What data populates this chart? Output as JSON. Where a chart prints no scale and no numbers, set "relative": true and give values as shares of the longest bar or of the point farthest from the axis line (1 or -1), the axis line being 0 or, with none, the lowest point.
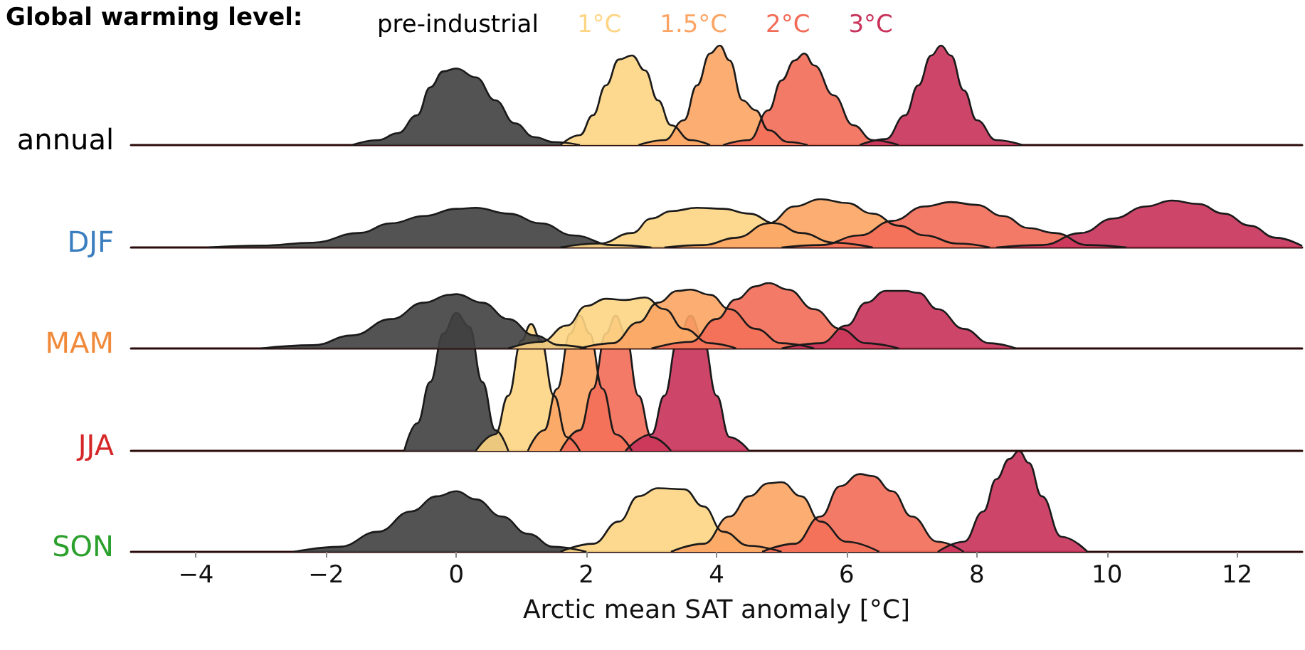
{
  "chart_data": [
    {
      "type": "area",
      "relative": true,
      "legend_title": "Global warming level:",
      "legend": "top",
      "ylabel": "annual",
      "xlim": [
        -5,
        13
      ],
      "tick_labels": false,
      "series": [
        {
          "name": "pre-industrial",
          "color": "#404040",
          "x": [
            -1.6,
            -1.2,
            -0.9,
            -0.6,
            -0.4,
            -0.2,
            0,
            0.3,
            0.6,
            0.9,
            1.2,
            1.5,
            1.9
          ],
          "values": [
            0,
            0.05,
            0.12,
            0.3,
            0.58,
            0.74,
            0.77,
            0.68,
            0.45,
            0.22,
            0.08,
            0.03,
            0
          ]
        },
        {
          "name": "1°C",
          "color": "#fdd584",
          "x": [
            1.6,
            1.9,
            2.1,
            2.3,
            2.5,
            2.7,
            2.9,
            3.1,
            3.3,
            3.6,
            3.9
          ],
          "values": [
            0,
            0.1,
            0.3,
            0.6,
            0.86,
            0.9,
            0.75,
            0.45,
            0.2,
            0.05,
            0
          ]
        },
        {
          "name": "1.5°C",
          "color": "#fca463",
          "x": [
            2.8,
            3.2,
            3.5,
            3.7,
            3.9,
            4.05,
            4.2,
            4.4,
            4.6,
            4.8,
            5.1,
            5.4
          ],
          "values": [
            0,
            0.05,
            0.25,
            0.6,
            0.92,
            1,
            0.85,
            0.45,
            0.35,
            0.15,
            0.03,
            0
          ]
        },
        {
          "name": "2°C",
          "color": "#f26b56",
          "x": [
            4.1,
            4.5,
            4.8,
            5.0,
            5.2,
            5.35,
            5.5,
            5.8,
            6.1,
            6.4,
            6.8
          ],
          "values": [
            0,
            0.05,
            0.35,
            0.65,
            0.85,
            0.92,
            0.8,
            0.5,
            0.2,
            0.05,
            0
          ]
        },
        {
          "name": "3°C",
          "color": "#c8325a",
          "x": [
            6.2,
            6.6,
            6.9,
            7.1,
            7.3,
            7.45,
            7.6,
            7.8,
            8.0,
            8.3,
            8.7
          ],
          "values": [
            0,
            0.06,
            0.3,
            0.6,
            0.9,
            1.0,
            0.9,
            0.55,
            0.25,
            0.05,
            0
          ]
        }
      ]
    },
    {
      "type": "area",
      "relative": true,
      "ylabel": "DJF",
      "xlim": [
        -5,
        13
      ],
      "tick_labels": false,
      "series": [
        {
          "color": "#404040",
          "x": [
            -3.8,
            -3,
            -2.2,
            -1.5,
            -1,
            -0.5,
            0,
            0.3,
            0.8,
            1.3,
            1.8,
            2.4,
            3.0
          ],
          "values": [
            0,
            0.04,
            0.1,
            0.3,
            0.5,
            0.65,
            0.8,
            0.82,
            0.7,
            0.5,
            0.25,
            0.05,
            0
          ]
        },
        {
          "color": "#fdd584",
          "x": [
            1.6,
            2.2,
            2.7,
            3.0,
            3.3,
            3.7,
            4.1,
            4.5,
            4.9,
            5.3,
            5.8,
            6.4
          ],
          "values": [
            0,
            0.08,
            0.3,
            0.6,
            0.75,
            0.82,
            0.8,
            0.7,
            0.5,
            0.3,
            0.1,
            0
          ]
        },
        {
          "color": "#fca463",
          "x": [
            3.2,
            3.8,
            4.3,
            4.8,
            5.2,
            5.6,
            6.0,
            6.4,
            6.8,
            7.2,
            7.7,
            8.2
          ],
          "values": [
            0,
            0.05,
            0.2,
            0.5,
            0.85,
            1,
            0.92,
            0.7,
            0.45,
            0.25,
            0.08,
            0
          ]
        },
        {
          "color": "#f26b56",
          "x": [
            5.0,
            5.6,
            6.2,
            6.7,
            7.2,
            7.6,
            8.0,
            8.4,
            8.8,
            9.2,
            9.7,
            10.3
          ],
          "values": [
            0,
            0.05,
            0.25,
            0.55,
            0.85,
            0.94,
            0.88,
            0.65,
            0.4,
            0.3,
            0.05,
            0
          ]
        },
        {
          "color": "#c8325a",
          "x": [
            8.3,
            9.0,
            9.6,
            10.1,
            10.6,
            11.0,
            11.4,
            11.8,
            12.2,
            12.6,
            13.0
          ],
          "values": [
            0,
            0.05,
            0.3,
            0.6,
            0.85,
            0.97,
            0.9,
            0.7,
            0.45,
            0.2,
            0.03
          ]
        }
      ]
    },
    {
      "type": "area",
      "relative": true,
      "ylabel": "MAM",
      "xlim": [
        -5,
        13
      ],
      "tick_labels": false,
      "series": [
        {
          "color": "#404040",
          "x": [
            -3.0,
            -2.2,
            -1.6,
            -1.0,
            -0.5,
            -0.1,
            0,
            0.4,
            0.8,
            1.2,
            1.6,
            2.0
          ],
          "values": [
            0,
            0.05,
            0.2,
            0.45,
            0.7,
            0.82,
            0.83,
            0.7,
            0.45,
            0.2,
            0.05,
            0
          ]
        },
        {
          "color": "#fdd584",
          "x": [
            0.8,
            1.3,
            1.7,
            2.0,
            2.3,
            2.6,
            2.9,
            3.2,
            3.5,
            3.9,
            4.3
          ],
          "values": [
            0,
            0.1,
            0.35,
            0.65,
            0.76,
            0.74,
            0.78,
            0.6,
            0.3,
            0.08,
            0
          ]
        },
        {
          "color": "#fca463",
          "x": [
            1.9,
            2.4,
            2.8,
            3.1,
            3.4,
            3.6,
            3.9,
            4.2,
            4.6,
            5.0,
            5.5
          ],
          "values": [
            0,
            0.08,
            0.4,
            0.7,
            0.88,
            0.9,
            0.82,
            0.6,
            0.3,
            0.08,
            0
          ]
        },
        {
          "color": "#f26b56",
          "x": [
            3.0,
            3.6,
            4.0,
            4.3,
            4.6,
            4.8,
            5.1,
            5.5,
            5.9,
            6.3,
            6.8
          ],
          "values": [
            0,
            0.1,
            0.45,
            0.75,
            0.95,
            1,
            0.9,
            0.6,
            0.3,
            0.08,
            0
          ]
        },
        {
          "color": "#c8325a",
          "x": [
            5.0,
            5.6,
            6.0,
            6.3,
            6.6,
            6.9,
            7.1,
            7.4,
            7.8,
            8.2,
            8.6
          ],
          "values": [
            0,
            0.08,
            0.35,
            0.7,
            0.88,
            0.88,
            0.85,
            0.6,
            0.3,
            0.08,
            0
          ]
        }
      ]
    },
    {
      "type": "area",
      "relative": true,
      "ylabel": "JJA",
      "xlim": [
        -5,
        13
      ],
      "tick_labels": false,
      "series": [
        {
          "color": "#404040",
          "x": [
            -0.8,
            -0.6,
            -0.4,
            -0.2,
            0,
            0.2,
            0.4,
            0.6,
            0.8
          ],
          "values": [
            0,
            0.2,
            0.5,
            0.85,
            1,
            0.9,
            0.5,
            0.15,
            0
          ]
        },
        {
          "color": "#fdd584",
          "x": [
            0.3,
            0.6,
            0.8,
            1.0,
            1.15,
            1.3,
            1.5,
            1.7,
            1.9
          ],
          "values": [
            0,
            0.12,
            0.4,
            0.8,
            0.92,
            0.8,
            0.4,
            0.1,
            0
          ]
        },
        {
          "color": "#fca463",
          "x": [
            1.1,
            1.35,
            1.55,
            1.75,
            1.9,
            2.05,
            2.25,
            2.45,
            2.7
          ],
          "values": [
            0,
            0.15,
            0.45,
            0.85,
            0.98,
            0.85,
            0.45,
            0.12,
            0
          ]
        },
        {
          "color": "#f26b56",
          "x": [
            1.6,
            1.9,
            2.1,
            2.3,
            2.45,
            2.6,
            2.8,
            3.0,
            3.3
          ],
          "values": [
            0,
            0.15,
            0.45,
            0.85,
            0.98,
            0.85,
            0.4,
            0.1,
            0
          ]
        },
        {
          "color": "#c8325a",
          "x": [
            2.6,
            3.0,
            3.2,
            3.4,
            3.6,
            3.8,
            4.0,
            4.2,
            4.5
          ],
          "values": [
            0,
            0.12,
            0.4,
            0.8,
            0.98,
            0.8,
            0.4,
            0.1,
            0
          ]
        }
      ]
    },
    {
      "type": "area",
      "relative": true,
      "ylabel": "SON",
      "xlabel": "Arctic mean SAT anomaly [°C]",
      "xlim": [
        -5,
        13
      ],
      "xticks": [
        -4,
        -2,
        0,
        2,
        4,
        6,
        8,
        10,
        12
      ],
      "tick_labels": "x",
      "series": [
        {
          "color": "#404040",
          "x": [
            -2.5,
            -1.8,
            -1.2,
            -0.7,
            -0.3,
            0,
            0.3,
            0.7,
            1.1,
            1.5,
            2.0
          ],
          "values": [
            0,
            0.05,
            0.2,
            0.4,
            0.55,
            0.6,
            0.52,
            0.35,
            0.18,
            0.05,
            0
          ]
        },
        {
          "color": "#fdd584",
          "x": [
            1.6,
            2.1,
            2.5,
            2.8,
            3.1,
            3.5,
            3.8,
            4.1,
            4.5,
            5.0
          ],
          "values": [
            0,
            0.08,
            0.3,
            0.55,
            0.63,
            0.62,
            0.45,
            0.2,
            0.06,
            0
          ]
        },
        {
          "color": "#fca463",
          "x": [
            3.3,
            3.8,
            4.2,
            4.5,
            4.8,
            5.0,
            5.3,
            5.6,
            6.0,
            6.5
          ],
          "values": [
            0,
            0.08,
            0.35,
            0.55,
            0.68,
            0.69,
            0.55,
            0.3,
            0.1,
            0
          ]
        },
        {
          "color": "#f26b56",
          "x": [
            4.7,
            5.2,
            5.6,
            5.9,
            6.2,
            6.4,
            6.7,
            7.0,
            7.4,
            7.8
          ],
          "values": [
            0,
            0.08,
            0.35,
            0.65,
            0.77,
            0.75,
            0.6,
            0.35,
            0.1,
            0
          ]
        },
        {
          "color": "#c8325a",
          "x": [
            7.4,
            7.8,
            8.1,
            8.3,
            8.5,
            8.65,
            8.8,
            9.0,
            9.3,
            9.7
          ],
          "values": [
            0,
            0.1,
            0.4,
            0.72,
            0.92,
            1,
            0.88,
            0.55,
            0.15,
            0
          ]
        }
      ]
    }
  ]
}
